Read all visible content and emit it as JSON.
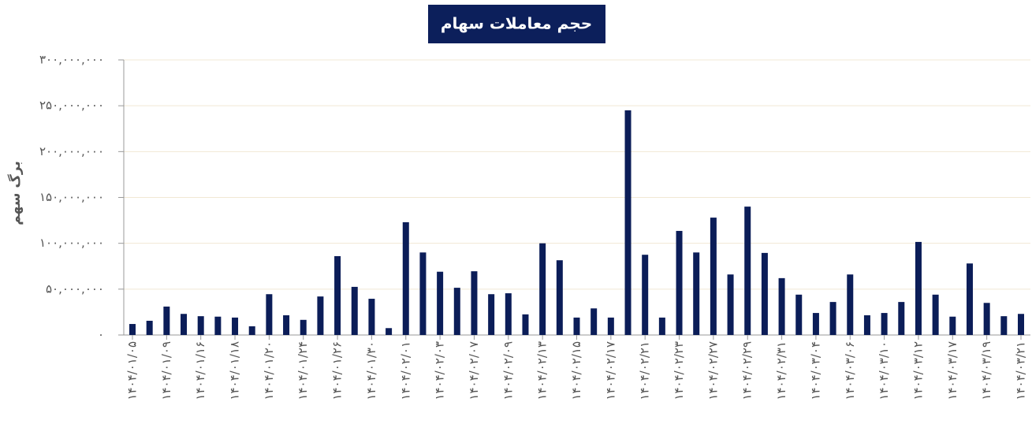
{
  "chart_data": {
    "type": "bar",
    "title": "حجم معاملات سهام",
    "y_label": "برگ سهم",
    "color": "#0b1d58",
    "grid": true,
    "ylim": [
      0,
      300000000
    ],
    "yticks": [
      {
        "value": 0,
        "label": "۰"
      },
      {
        "value": 50000000,
        "label": "۵۰,۰۰۰,۰۰۰"
      },
      {
        "value": 100000000,
        "label": "۱۰۰,۰۰۰,۰۰۰"
      },
      {
        "value": 150000000,
        "label": "۱۵۰,۰۰۰,۰۰۰"
      },
      {
        "value": 200000000,
        "label": "۲۰۰,۰۰۰,۰۰۰"
      },
      {
        "value": 250000000,
        "label": "۲۵۰,۰۰۰,۰۰۰"
      },
      {
        "value": 300000000,
        "label": "۳۰۰,۰۰۰,۰۰۰"
      }
    ],
    "categories": [
      "۱۴۰۴/۰۱/۰۵",
      null,
      "۱۴۰۴/۰۱/۰۹",
      null,
      "۱۴۰۴/۰۱/۱۶",
      null,
      "۱۴۰۴/۰۱/۱۸",
      null,
      "۱۴۰۴/۰۱/۲۰",
      null,
      "۱۴۰۴/۰۱/۲۴",
      null,
      "۱۴۰۴/۰۱/۲۶",
      null,
      "۱۴۰۴/۰۱/۳۰",
      null,
      "۱۴۰۴/۰۲/۰۱",
      null,
      "۱۴۰۴/۰۲/۰۳",
      null,
      "۱۴۰۴/۰۲/۰۷",
      null,
      "۱۴۰۴/۰۲/۰۹",
      null,
      "۱۴۰۴/۰۲/۱۳",
      null,
      "۱۴۰۴/۰۲/۱۵",
      null,
      "۱۴۰۴/۰۲/۱۷",
      null,
      "۱۴۰۴/۰۲/۲۱",
      null,
      "۱۴۰۴/۰۲/۲۳",
      null,
      "۱۴۰۴/۰۲/۲۷",
      null,
      "۱۴۰۴/۰۲/۲۹",
      null,
      "۱۴۰۴/۰۲/۳۱",
      null,
      "۱۴۰۴/۰۳/۰۴",
      null,
      "۱۴۰۴/۰۳/۰۶",
      null,
      "۱۴۰۴/۰۳/۱۰",
      null,
      "۱۴۰۴/۰۳/۱۲",
      null,
      "۱۴۰۴/۰۳/۱۷",
      null,
      "۱۴۰۴/۰۳/۱۹",
      null,
      "۱۴۰۴/۰۳/۲۱"
    ],
    "values": [
      12000000,
      15500000,
      31000000,
      23000000,
      20500000,
      20000000,
      19000000,
      9500000,
      44500000,
      21500000,
      16500000,
      42000000,
      86000000,
      52500000,
      39500000,
      7500000,
      123000000,
      90000000,
      69000000,
      51500000,
      69500000,
      44500000,
      45500000,
      22500000,
      100000000,
      81500000,
      19000000,
      29000000,
      19000000,
      245000000,
      87500000,
      19000000,
      113500000,
      90000000,
      128000000,
      66000000,
      140000000,
      89500000,
      62000000,
      44000000,
      24000000,
      36000000,
      66000000,
      21500000,
      24000000,
      36000000,
      101500000,
      44000000,
      20000000,
      78000000,
      35000000,
      20500000,
      23000000
    ]
  }
}
